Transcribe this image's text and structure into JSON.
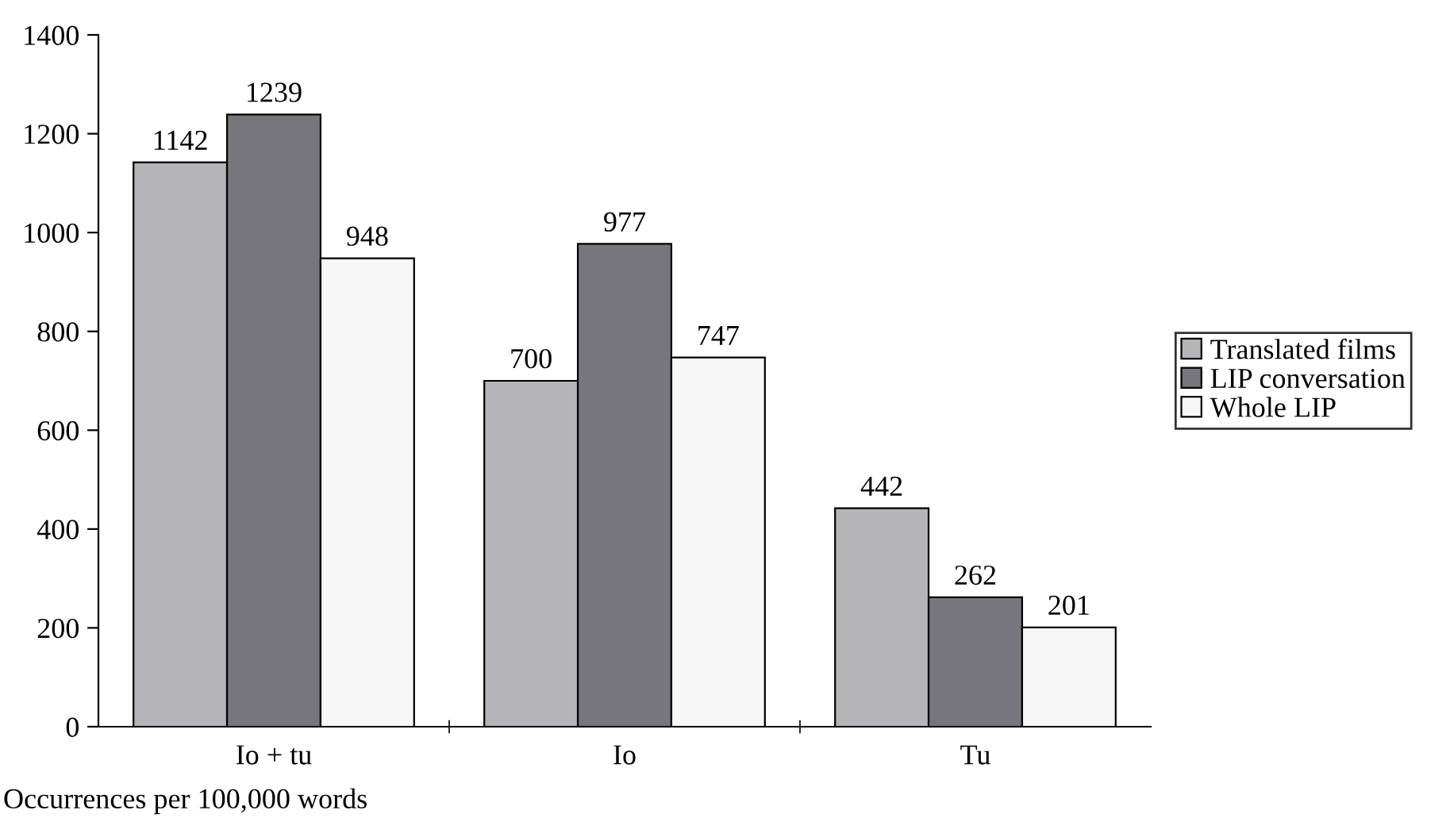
{
  "chart_data": {
    "type": "bar",
    "categories": [
      "Io + tu",
      "Io",
      "Tu"
    ],
    "series": [
      {
        "name": "Translated films",
        "color": "#b4b4b9",
        "values": [
          1142,
          700,
          442
        ]
      },
      {
        "name": "LIP conversation",
        "color": "#76767c",
        "values": [
          1239,
          977,
          262
        ]
      },
      {
        "name": "Whole LIP",
        "color": "#f7f7f7",
        "values": [
          948,
          747,
          201
        ]
      }
    ],
    "ylim": [
      0,
      1400
    ],
    "yticks": [
      0,
      200,
      400,
      600,
      800,
      1000,
      1200,
      1400
    ],
    "data_labels": true,
    "legend": "right",
    "grid": false,
    "annotations": [
      "Occurrences per 100,000 words"
    ]
  }
}
